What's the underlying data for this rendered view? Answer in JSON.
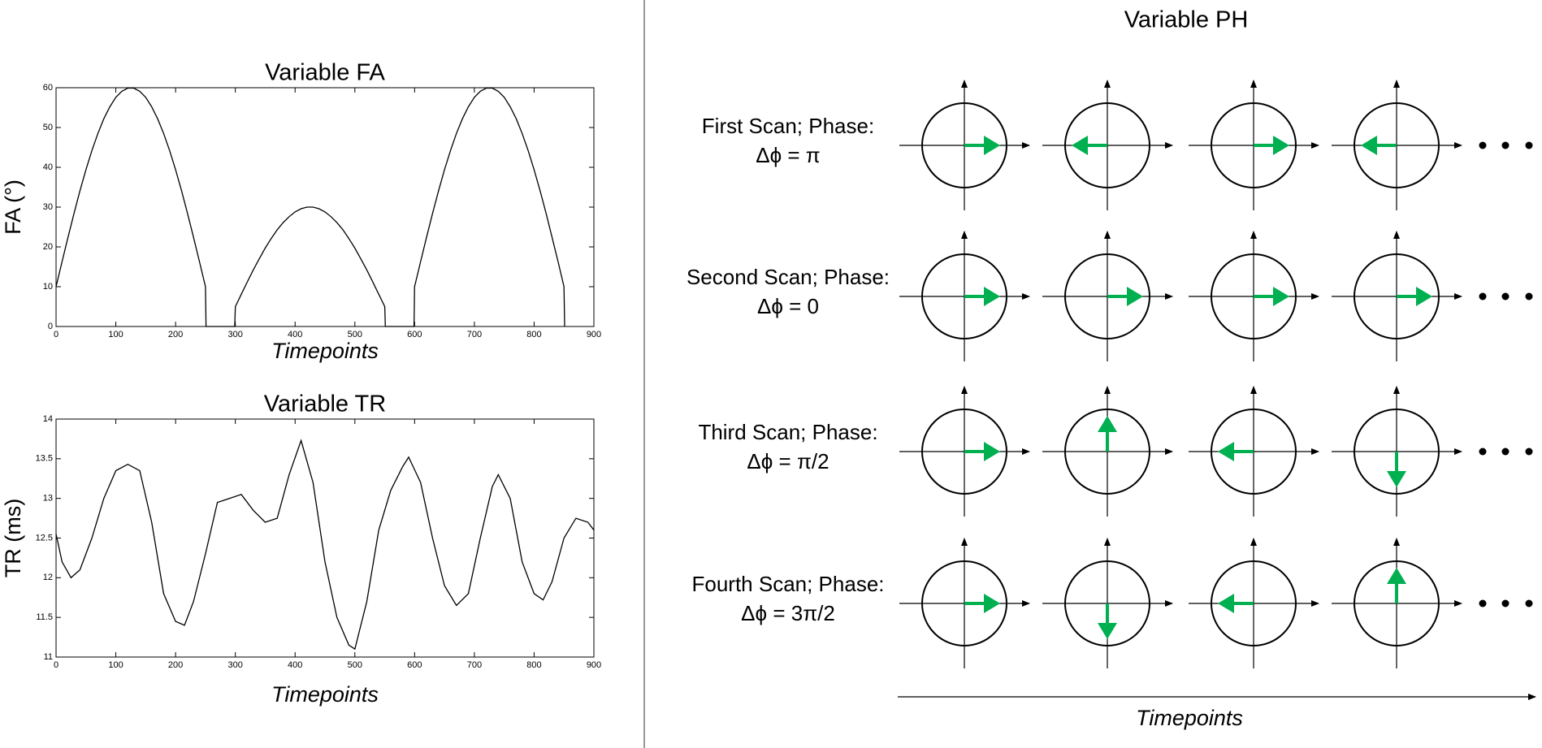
{
  "chart_data": [
    {
      "type": "line",
      "title": "Variable FA",
      "xlabel": "Timepoints",
      "ylabel": "FA (°)",
      "color": "#000000",
      "xlim": [
        0,
        900
      ],
      "ylim": [
        0,
        60
      ],
      "xticks": [
        0,
        100,
        200,
        300,
        400,
        500,
        600,
        700,
        800,
        900
      ],
      "yticks": [
        0,
        10,
        20,
        30,
        40,
        50,
        60
      ],
      "x": [
        0,
        10,
        20,
        30,
        40,
        50,
        60,
        70,
        80,
        90,
        100,
        110,
        120,
        130,
        140,
        150,
        160,
        170,
        180,
        190,
        200,
        210,
        220,
        230,
        240,
        250,
        251,
        299,
        300,
        310,
        320,
        330,
        340,
        350,
        360,
        370,
        380,
        390,
        400,
        410,
        420,
        430,
        440,
        450,
        460,
        470,
        480,
        490,
        500,
        510,
        520,
        530,
        540,
        550,
        551,
        599,
        600,
        610,
        620,
        630,
        640,
        650,
        660,
        670,
        680,
        690,
        700,
        710,
        720,
        730,
        740,
        750,
        760,
        770,
        780,
        790,
        800,
        810,
        820,
        830,
        840,
        850,
        851
      ],
      "values": [
        10,
        16.3,
        22.4,
        28.4,
        34.1,
        39.4,
        44.2,
        48.5,
        52.2,
        55.2,
        57.6,
        59.1,
        59.9,
        59.9,
        59.1,
        57.6,
        55.2,
        52.2,
        48.5,
        44.2,
        39.4,
        34.1,
        28.4,
        22.4,
        16.3,
        10,
        0,
        0,
        5,
        8.1,
        11.2,
        14.2,
        17,
        19.7,
        22.1,
        24.3,
        26.1,
        27.6,
        28.8,
        29.6,
        30,
        30,
        29.6,
        28.8,
        27.6,
        26.1,
        24.3,
        22.1,
        19.7,
        17,
        14.2,
        11.2,
        8.1,
        5,
        0,
        0,
        10,
        16.3,
        22.4,
        28.4,
        34.1,
        39.4,
        44.2,
        48.5,
        52.2,
        55.2,
        57.6,
        59.1,
        59.9,
        59.9,
        59.1,
        57.6,
        55.2,
        52.2,
        48.5,
        44.2,
        39.4,
        34.1,
        28.4,
        22.4,
        16.3,
        10,
        0
      ]
    },
    {
      "type": "line",
      "title": "Variable TR",
      "xlabel": "Timepoints",
      "ylabel": "TR (ms)",
      "color": "#000000",
      "xlim": [
        0,
        900
      ],
      "ylim": [
        11,
        14
      ],
      "xticks": [
        0,
        100,
        200,
        300,
        400,
        500,
        600,
        700,
        800,
        900
      ],
      "yticks": [
        11,
        11.5,
        12,
        12.5,
        13,
        13.5,
        14
      ],
      "x": [
        0,
        10,
        25,
        40,
        60,
        80,
        100,
        120,
        140,
        160,
        180,
        200,
        215,
        230,
        250,
        270,
        290,
        310,
        330,
        350,
        370,
        390,
        410,
        430,
        450,
        470,
        490,
        500,
        520,
        540,
        560,
        580,
        590,
        610,
        630,
        650,
        670,
        690,
        710,
        730,
        740,
        760,
        780,
        800,
        815,
        830,
        850,
        870,
        890,
        900
      ],
      "values": [
        12.55,
        12.2,
        12,
        12.1,
        12.5,
        13,
        13.35,
        13.43,
        13.35,
        12.7,
        11.8,
        11.45,
        11.4,
        11.7,
        12.3,
        12.95,
        13,
        13.05,
        12.85,
        12.7,
        12.75,
        13.3,
        13.73,
        13.2,
        12.2,
        11.5,
        11.15,
        11.1,
        11.7,
        12.6,
        13.1,
        13.4,
        13.52,
        13.2,
        12.5,
        11.9,
        11.65,
        11.8,
        12.5,
        13.15,
        13.3,
        13,
        12.2,
        11.8,
        11.72,
        11.95,
        12.5,
        12.75,
        12.7,
        12.6
      ]
    }
  ],
  "diagram": {
    "title": "Variable PH",
    "xlabel": "Timepoints",
    "rows": [
      {
        "label": "First Scan; Phase:",
        "phase": "Δϕ = π",
        "arrow_angles": [
          0,
          180,
          0,
          180
        ]
      },
      {
        "label": "Second Scan; Phase:",
        "phase": "Δϕ = 0",
        "arrow_angles": [
          0,
          0,
          0,
          0
        ]
      },
      {
        "label": "Third Scan; Phase:",
        "phase": "Δϕ = π/2",
        "arrow_angles": [
          0,
          90,
          180,
          270
        ]
      },
      {
        "label": "Fourth Scan; Phase:",
        "phase": "Δϕ = 3π/2",
        "arrow_angles": [
          0,
          270,
          180,
          90
        ]
      }
    ]
  }
}
